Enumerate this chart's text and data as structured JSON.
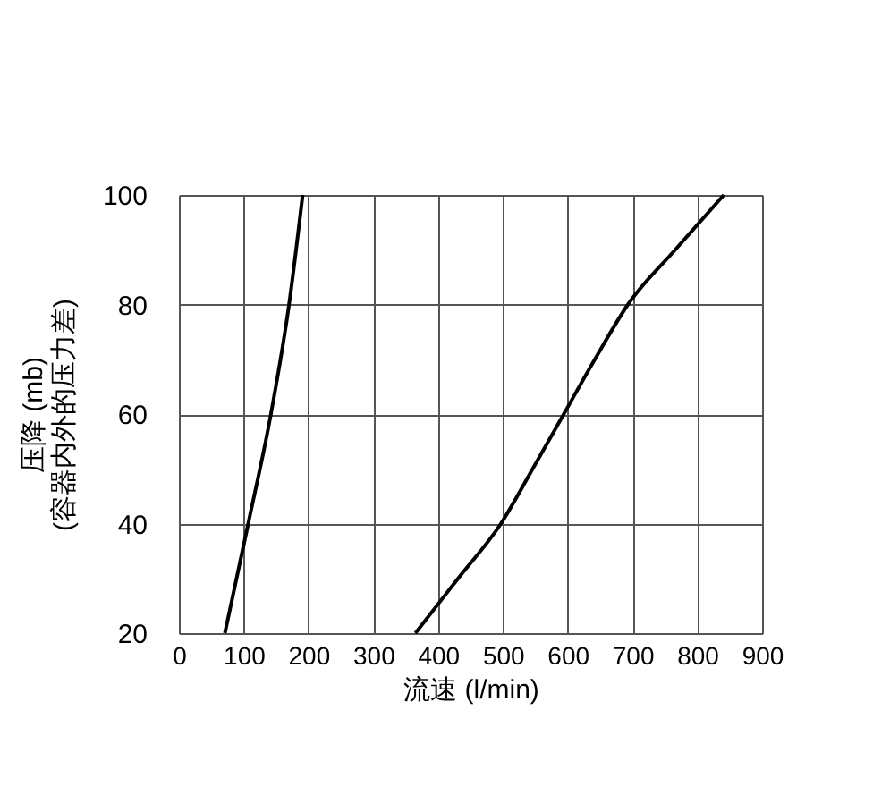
{
  "chart_data": {
    "type": "line",
    "xlabel": "流速 (l/min)",
    "ylabel": "压降 (mb)\n(容器内外的压力差)",
    "xlim": [
      0,
      900
    ],
    "xticks": [
      0,
      100,
      200,
      300,
      400,
      500,
      600,
      700,
      800,
      900
    ],
    "ylim": [
      20,
      100
    ],
    "yticks": [
      20,
      40,
      60,
      80,
      100
    ],
    "grid": true,
    "legend": false,
    "line_style": "solid",
    "marker": "none",
    "series": [
      {
        "color": "#000000",
        "x": [
          71,
          107,
          142,
          170,
          191
        ],
        "values": [
          20,
          40,
          60,
          80,
          100
        ]
      },
      {
        "color": "#000000",
        "x": [
          365,
          431,
          497,
          546,
          594,
          642,
          693,
          766,
          841
        ],
        "values": [
          20,
          30,
          40,
          50,
          60,
          70,
          80,
          90,
          100
        ]
      }
    ]
  }
}
